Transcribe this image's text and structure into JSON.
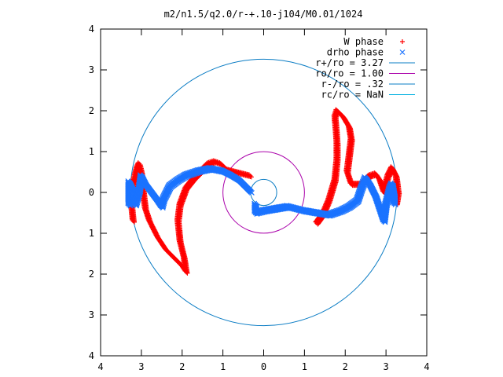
{
  "chart_data": {
    "type": "scatter",
    "title": "m2/n1.5/q2.0/r-+.10-j104/M0.01/1024",
    "xlim": [
      -4,
      4
    ],
    "ylim": [
      -4,
      4
    ],
    "x_tick_labels": [
      "4",
      "3",
      "2",
      "1",
      "0",
      "1",
      "2",
      "3",
      "4"
    ],
    "y_tick_labels": [
      "4",
      "3",
      "2",
      "1",
      "0",
      "1",
      "2",
      "3",
      "4"
    ],
    "legend_position": "top-right",
    "grid": false,
    "series": [
      {
        "name": "W phase",
        "marker": "+",
        "color": "#ff0000",
        "paths": [
          [
            [
              -3.2,
              -0.7
            ],
            [
              -3.25,
              -0.2
            ],
            [
              -3.2,
              0.2
            ],
            [
              -3.1,
              0.6
            ],
            [
              -3.05,
              0.7
            ],
            [
              -3.0,
              0.5
            ],
            [
              -2.95,
              0.0
            ],
            [
              -2.9,
              -0.4
            ],
            [
              -2.8,
              -0.7
            ],
            [
              -2.6,
              -1.1
            ],
            [
              -2.4,
              -1.4
            ],
            [
              -2.2,
              -1.6
            ],
            [
              -2.0,
              -1.8
            ],
            [
              -1.9,
              -1.95
            ],
            [
              -1.95,
              -1.6
            ],
            [
              -2.05,
              -1.2
            ],
            [
              -2.1,
              -0.7
            ],
            [
              -2.05,
              -0.3
            ],
            [
              -1.9,
              0.1
            ],
            [
              -1.7,
              0.35
            ],
            [
              -1.5,
              0.55
            ],
            [
              -1.35,
              0.7
            ],
            [
              -1.2,
              0.75
            ],
            [
              -1.05,
              0.7
            ],
            [
              -0.9,
              0.55
            ],
            [
              -0.7,
              0.5
            ],
            [
              -0.5,
              0.45
            ],
            [
              -0.3,
              0.4
            ]
          ],
          [
            [
              1.3,
              -0.75
            ],
            [
              1.45,
              -0.55
            ],
            [
              1.6,
              -0.2
            ],
            [
              1.75,
              0.3
            ],
            [
              1.8,
              0.8
            ],
            [
              1.8,
              1.2
            ],
            [
              1.78,
              1.5
            ],
            [
              1.75,
              1.85
            ],
            [
              1.8,
              2.0
            ],
            [
              1.95,
              1.85
            ],
            [
              2.1,
              1.6
            ],
            [
              2.15,
              1.3
            ],
            [
              2.1,
              0.9
            ],
            [
              2.05,
              0.5
            ],
            [
              2.15,
              0.2
            ],
            [
              2.4,
              0.2
            ],
            [
              2.6,
              0.4
            ],
            [
              2.75,
              0.45
            ],
            [
              2.85,
              0.3
            ],
            [
              2.95,
              0.0
            ],
            [
              3.05,
              0.4
            ],
            [
              3.15,
              0.6
            ],
            [
              3.25,
              0.4
            ],
            [
              3.3,
              0.0
            ],
            [
              3.25,
              -0.3
            ]
          ]
        ]
      },
      {
        "name": "drho phase",
        "marker": "x",
        "color": "#1a73ff",
        "paths": [
          [
            [
              -3.3,
              -0.3
            ],
            [
              -3.3,
              0.25
            ],
            [
              -3.2,
              0.05
            ],
            [
              -3.15,
              -0.3
            ],
            [
              -3.05,
              0.05
            ],
            [
              -3.0,
              0.4
            ],
            [
              -2.9,
              0.2
            ],
            [
              -2.75,
              0.0
            ],
            [
              -2.6,
              -0.2
            ],
            [
              -2.5,
              -0.35
            ],
            [
              -2.45,
              -0.15
            ],
            [
              -2.3,
              0.15
            ],
            [
              -2.1,
              0.3
            ],
            [
              -1.9,
              0.42
            ],
            [
              -1.6,
              0.52
            ],
            [
              -1.3,
              0.58
            ],
            [
              -1.0,
              0.52
            ],
            [
              -0.8,
              0.42
            ],
            [
              -0.6,
              0.3
            ],
            [
              -0.4,
              0.1
            ],
            [
              -0.3,
              0.0
            ]
          ],
          [
            [
              -0.2,
              -0.3
            ],
            [
              -0.2,
              -0.5
            ],
            [
              0.0,
              -0.45
            ],
            [
              0.3,
              -0.4
            ],
            [
              0.6,
              -0.35
            ],
            [
              0.8,
              -0.4
            ],
            [
              1.0,
              -0.45
            ],
            [
              1.3,
              -0.5
            ],
            [
              1.6,
              -0.55
            ],
            [
              1.9,
              -0.45
            ],
            [
              2.1,
              -0.35
            ],
            [
              2.3,
              -0.2
            ],
            [
              2.4,
              0.1
            ],
            [
              2.5,
              0.35
            ],
            [
              2.6,
              0.2
            ],
            [
              2.75,
              -0.1
            ],
            [
              2.85,
              -0.4
            ],
            [
              2.95,
              -0.7
            ],
            [
              3.0,
              -0.3
            ],
            [
              3.1,
              0.1
            ],
            [
              3.15,
              0.2
            ],
            [
              3.2,
              -0.1
            ],
            [
              3.2,
              -0.3
            ]
          ]
        ]
      },
      {
        "name": "r+/ro = 3.27",
        "type": "circle",
        "radius": 3.27,
        "color": "#0a7cc4"
      },
      {
        "name": "ro/ro = 1.00",
        "type": "circle",
        "radius": 1.0,
        "color": "#aa00aa"
      },
      {
        "name": "r-/ro = .32",
        "type": "circle",
        "radius": 0.32,
        "color": "#0a7cc4"
      },
      {
        "name": "rc/ro = NaN",
        "type": "circle",
        "radius": null,
        "color": "#00b0e0"
      }
    ]
  }
}
